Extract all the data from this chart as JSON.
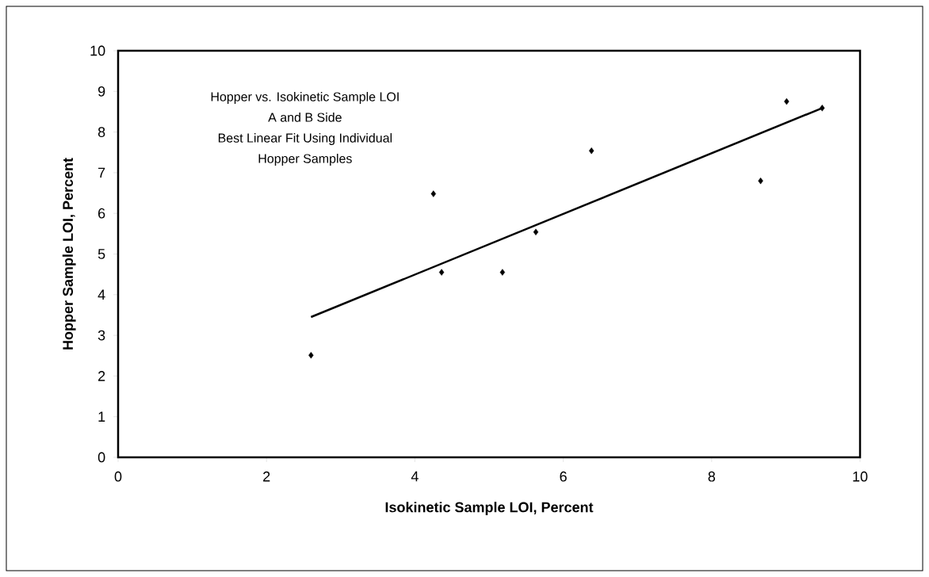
{
  "chart_data": {
    "type": "scatter",
    "xlabel": "Isokinetic Sample LOI, Percent",
    "ylabel": "Hopper Sample LOI, Percent",
    "annotations": [
      "Hopper vs. Isokinetic Sample LOI",
      "A and B Side",
      "Best Linear Fit Using Individual",
      "Hopper Samples"
    ],
    "xlim": [
      0,
      10
    ],
    "ylim": [
      0,
      10
    ],
    "xticks": [
      0,
      2,
      4,
      6,
      8,
      10
    ],
    "yticks": [
      0,
      1,
      2,
      3,
      4,
      5,
      6,
      7,
      8,
      9,
      10
    ],
    "marker": "diamond",
    "series": [
      {
        "color": "#000000",
        "x": [
          2.6,
          4.25,
          4.36,
          5.18,
          5.63,
          6.38,
          8.66,
          9.01,
          9.49
        ],
        "values": [
          2.51,
          6.48,
          4.55,
          4.55,
          5.54,
          7.54,
          6.8,
          8.75,
          8.59
        ]
      },
      {
        "type": "line",
        "color": "#000000",
        "x": [
          2.6,
          9.49
        ],
        "values": [
          3.45,
          8.59
        ],
        "marker": "none",
        "line_style": "solid"
      }
    ]
  }
}
